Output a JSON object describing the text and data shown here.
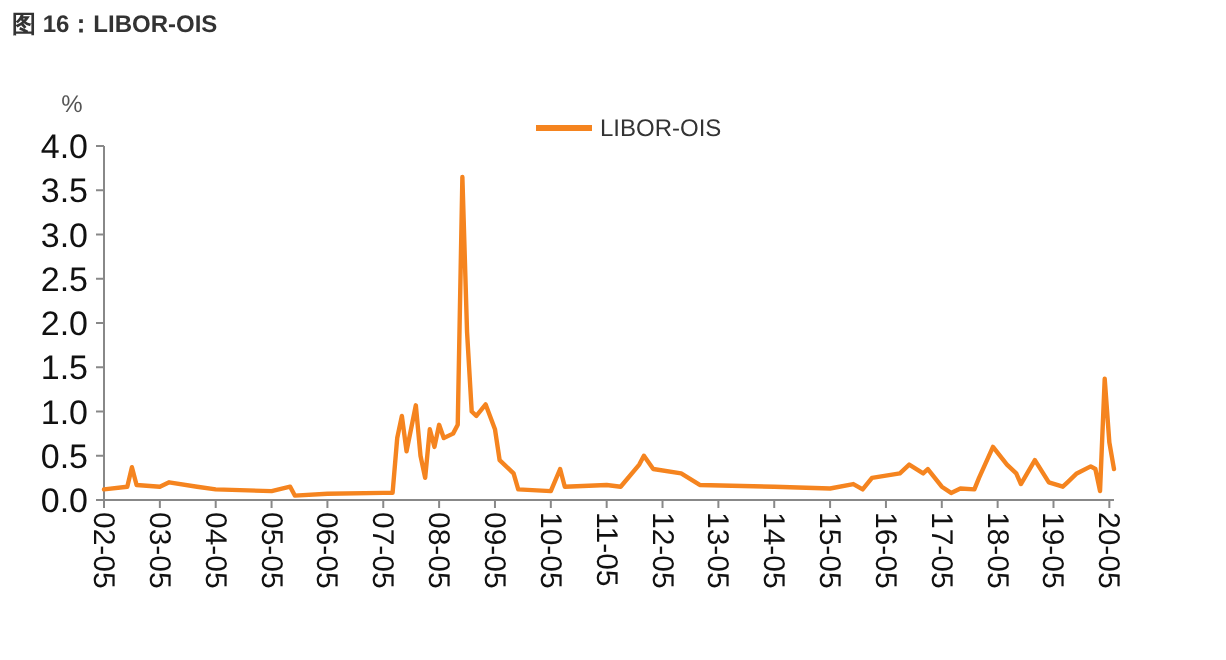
{
  "chart_data": {
    "type": "line",
    "title": "图 16：LIBOR-OIS",
    "ylabel": "%",
    "legend": "top",
    "x": [
      "2002-05",
      "2002-10",
      "2002-11",
      "2002-12",
      "2003-05",
      "2003-07",
      "2004-01",
      "2004-05",
      "2005-05",
      "2005-09",
      "2005-10",
      "2006-05",
      "2007-05",
      "2007-07",
      "2007-08",
      "2007-09",
      "2007-10",
      "2007-12",
      "2008-01",
      "2008-02",
      "2008-03",
      "2008-04",
      "2008-05",
      "2008-06",
      "2008-08",
      "2008-09",
      "2008-10",
      "2008-11",
      "2008-12",
      "2009-01",
      "2009-03",
      "2009-05",
      "2009-06",
      "2009-09",
      "2009-10",
      "2010-05",
      "2010-07",
      "2010-08",
      "2011-05",
      "2011-08",
      "2011-12",
      "2012-01",
      "2012-03",
      "2012-09",
      "2013-01",
      "2014-05",
      "2015-05",
      "2015-10",
      "2015-12",
      "2016-02",
      "2016-08",
      "2016-10",
      "2017-01",
      "2017-02",
      "2017-05",
      "2017-07",
      "2017-09",
      "2017-12",
      "2018-01",
      "2018-04",
      "2018-07",
      "2018-09",
      "2018-10",
      "2019-01",
      "2019-04",
      "2019-07",
      "2019-08",
      "2019-10",
      "2020-01",
      "2020-02",
      "2020-03",
      "2020-04",
      "2020-05",
      "2020-06"
    ],
    "series": [
      {
        "name": "LIBOR-OIS",
        "color": "#f5841f",
        "values": [
          0.12,
          0.15,
          0.37,
          0.17,
          0.15,
          0.2,
          0.15,
          0.12,
          0.1,
          0.15,
          0.05,
          0.07,
          0.08,
          0.08,
          0.7,
          0.95,
          0.55,
          1.07,
          0.5,
          0.25,
          0.8,
          0.6,
          0.85,
          0.7,
          0.75,
          0.85,
          3.65,
          1.9,
          1.0,
          0.95,
          1.08,
          0.8,
          0.45,
          0.3,
          0.12,
          0.1,
          0.35,
          0.15,
          0.17,
          0.15,
          0.4,
          0.5,
          0.35,
          0.3,
          0.17,
          0.15,
          0.13,
          0.18,
          0.12,
          0.25,
          0.3,
          0.4,
          0.3,
          0.35,
          0.15,
          0.08,
          0.13,
          0.12,
          0.25,
          0.6,
          0.4,
          0.3,
          0.18,
          0.45,
          0.2,
          0.15,
          0.2,
          0.3,
          0.38,
          0.35,
          0.1,
          1.37,
          0.65,
          0.35
        ]
      }
    ],
    "xlim": [
      "2002-05",
      "2020-06"
    ],
    "xticks": [
      {
        "value": "2002-05",
        "label": "02-05"
      },
      {
        "value": "2003-05",
        "label": "03-05"
      },
      {
        "value": "2004-05",
        "label": "04-05"
      },
      {
        "value": "2005-05",
        "label": "05-05"
      },
      {
        "value": "2006-05",
        "label": "06-05"
      },
      {
        "value": "2007-05",
        "label": "07-05"
      },
      {
        "value": "2008-05",
        "label": "08-05"
      },
      {
        "value": "2009-05",
        "label": "09-05"
      },
      {
        "value": "2010-05",
        "label": "10-05"
      },
      {
        "value": "2011-05",
        "label": "11-05"
      },
      {
        "value": "2012-05",
        "label": "12-05"
      },
      {
        "value": "2013-05",
        "label": "13-05"
      },
      {
        "value": "2014-05",
        "label": "14-05"
      },
      {
        "value": "2015-05",
        "label": "15-05"
      },
      {
        "value": "2016-05",
        "label": "16-05"
      },
      {
        "value": "2017-05",
        "label": "17-05"
      },
      {
        "value": "2018-05",
        "label": "18-05"
      },
      {
        "value": "2019-05",
        "label": "19-05"
      },
      {
        "value": "2020-05",
        "label": "20-05"
      }
    ],
    "ylim": [
      0,
      4
    ],
    "yticks": [
      {
        "value": 0,
        "label": "0.0"
      },
      {
        "value": 0.5,
        "label": "0.5"
      },
      {
        "value": 1,
        "label": "1.0"
      },
      {
        "value": 1.5,
        "label": "1.5"
      },
      {
        "value": 2,
        "label": "2.0"
      },
      {
        "value": 2.5,
        "label": "2.5"
      },
      {
        "value": 3,
        "label": "3.0"
      },
      {
        "value": 3.5,
        "label": "3.5"
      },
      {
        "value": 4,
        "label": "4.0"
      }
    ]
  }
}
